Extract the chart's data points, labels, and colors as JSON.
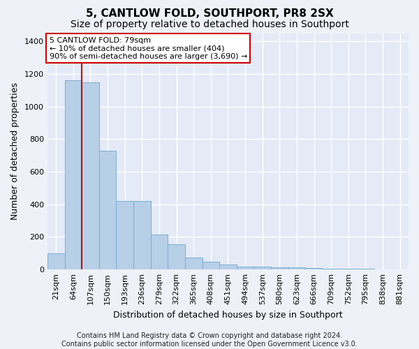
{
  "title": "5, CANTLOW FOLD, SOUTHPORT, PR8 2SX",
  "subtitle": "Size of property relative to detached houses in Southport",
  "xlabel": "Distribution of detached houses by size in Southport",
  "ylabel": "Number of detached properties",
  "categories": [
    "21sqm",
    "64sqm",
    "107sqm",
    "150sqm",
    "193sqm",
    "236sqm",
    "279sqm",
    "322sqm",
    "365sqm",
    "408sqm",
    "451sqm",
    "494sqm",
    "537sqm",
    "580sqm",
    "623sqm",
    "666sqm",
    "709sqm",
    "752sqm",
    "795sqm",
    "838sqm",
    "881sqm"
  ],
  "values": [
    100,
    1160,
    1150,
    730,
    420,
    420,
    215,
    155,
    75,
    50,
    30,
    20,
    18,
    15,
    12,
    8,
    5,
    5,
    3,
    2,
    2
  ],
  "bar_color": "#b8cfe8",
  "bar_edge_color": "#7aadd4",
  "vline_color": "#cc0000",
  "vline_pos": 1.5,
  "annotation_text": "5 CANTLOW FOLD: 79sqm\n← 10% of detached houses are smaller (404)\n90% of semi-detached houses are larger (3,690) →",
  "annotation_box_facecolor": "#ffffff",
  "annotation_box_edgecolor": "#cc0000",
  "ylim": [
    0,
    1450
  ],
  "yticks": [
    0,
    200,
    400,
    600,
    800,
    1000,
    1200,
    1400
  ],
  "background_color": "#eef2f8",
  "plot_bg_color": "#e4eaf6",
  "grid_color": "#ffffff",
  "title_fontsize": 11,
  "subtitle_fontsize": 10,
  "ylabel_fontsize": 9,
  "xlabel_fontsize": 9,
  "tick_fontsize": 8,
  "annotation_fontsize": 8,
  "footer_fontsize": 7,
  "footer_line1": "Contains HM Land Registry data © Crown copyright and database right 2024.",
  "footer_line2": "Contains public sector information licensed under the Open Government Licence v3.0."
}
